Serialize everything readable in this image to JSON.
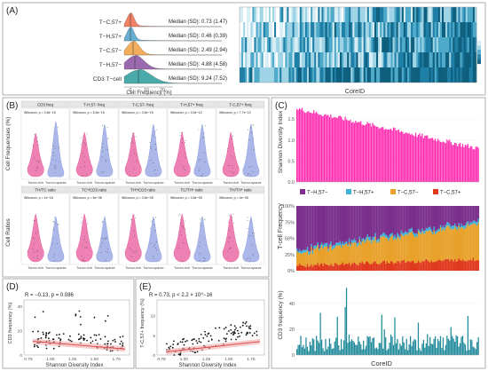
{
  "panel_labels": {
    "A": "(A)",
    "B": "(B)",
    "C": "(C)",
    "D": "(D)",
    "E": "(E)"
  },
  "colors": {
    "pink": "#e8579a",
    "blue": "#8f9fe0",
    "teal": "#1f8a9a",
    "magenta": "#ff2bb0",
    "purple": "#7b2f8c",
    "cyan": "#3fb0d8",
    "orange": "#e8a12a",
    "red": "#e03a1e",
    "ridge_colors": [
      "#f06a4a",
      "#4ea0c8",
      "#f0a040",
      "#8a4fa0",
      "#2a9a9a"
    ]
  },
  "chart_data": [
    {
      "id": "A-ridge",
      "type": "area",
      "rows": [
        "T−C,57+",
        "T−H,57+",
        "T−C,57−",
        "T−H,57−",
        "CD3 T−cell"
      ],
      "medians": [
        "Median (SD): 0.73 (1.47)",
        "Median (SD): 0.46 (0.39)",
        "Median (SD): 2.49 (2.94)",
        "Median (SD): 4.88 (4.58)",
        "Median (SD): 9.24 (7.52)"
      ],
      "xlabel": "Cell Frequency (%)",
      "xticks": [
        "0",
        "10",
        "20"
      ]
    },
    {
      "id": "A-heatmap",
      "type": "heatmap",
      "xlabel": "CoreID"
    },
    {
      "id": "B-violins",
      "type": "violin",
      "ylabels": [
        "Cell Frequencies (%)",
        "Cell Ratios"
      ],
      "groups": [
        "Tumor-rich",
        "Tumor-sparse"
      ],
      "panels": [
        {
          "title": "CD3 freq",
          "pval": "Wilcoxon, p = 3.6e−15"
        },
        {
          "title": "T-H,57- freq",
          "pval": "Wilcoxon, p = 5.6e−15"
        },
        {
          "title": "T-C,57- freq",
          "pval": "Wilcoxon, p = 3.6e−15"
        },
        {
          "title": "T-H,57+ freq",
          "pval": "Wilcoxon, p = 3.5e−12"
        },
        {
          "title": "T-C,57+ freq",
          "pval": "Wilcoxon, p = 7.7e−12"
        },
        {
          "title": "TH/TC ratio",
          "pval": "Wilcoxon, p = 1e−16"
        },
        {
          "title": "TC*/CD3 ratio",
          "pval": "Wilcoxon, p = 6e−06"
        },
        {
          "title": "TH*/CD3 ratio",
          "pval": "Wilcoxon, p = 3.6e−05"
        },
        {
          "title": "TC/TH* ratio",
          "pval": "Wilcoxon, p = 3.6e−05"
        },
        {
          "title": "TH/TH* ratio",
          "pval": "Wilcoxon, p = 4e−05"
        }
      ]
    },
    {
      "id": "C-shannon",
      "type": "bar",
      "ylabel": "Shannon Diversity Index",
      "yticks": [
        "0.0",
        "0.5",
        "1.0",
        "1.5"
      ],
      "ylim": [
        0,
        1.8
      ],
      "n_bars": 140,
      "start": 1.75,
      "end": 0.8
    },
    {
      "id": "C-stacked",
      "type": "bar",
      "ylabel": "T-cell Frequency",
      "yticks": [
        "0%",
        "25%",
        "50%",
        "75%",
        "100%"
      ],
      "series": [
        {
          "name": "T−H,57−"
        },
        {
          "name": "T−H,57+"
        },
        {
          "name": "T−C,57−"
        },
        {
          "name": "T−C,57+"
        }
      ]
    },
    {
      "id": "C-cd3",
      "type": "bar",
      "ylabel": "CD3 frequency (%)",
      "xlabel": "CoreID",
      "yticks": [
        "0",
        "20",
        "40"
      ],
      "ylim": [
        0,
        55
      ]
    },
    {
      "id": "D-scatter",
      "type": "scatter",
      "annotation": "R = −0.13, p = 0.086",
      "xlabel": "Shannon Diversity Index",
      "ylabel": "CD3 frequency (%)",
      "xticks": [
        "0.75",
        "1.00",
        "1.25",
        "1.50",
        "1.75"
      ],
      "yticks": [
        "0",
        "20",
        "40"
      ],
      "fit": {
        "slope": -6,
        "intercept": 16
      }
    },
    {
      "id": "E-scatter",
      "type": "scatter",
      "annotation": "R = 0.73, p < 2.2 × 10^−16",
      "xlabel": "Shannon Diversity Index",
      "ylabel": "T-C,57+ frequency (%)",
      "xticks": [
        "0.75",
        "1.00",
        "1.25",
        "1.50",
        "1.75"
      ],
      "yticks": [
        "0",
        "5",
        "10"
      ],
      "fit": {
        "slope": 2.5,
        "intercept": -1.2
      }
    }
  ]
}
